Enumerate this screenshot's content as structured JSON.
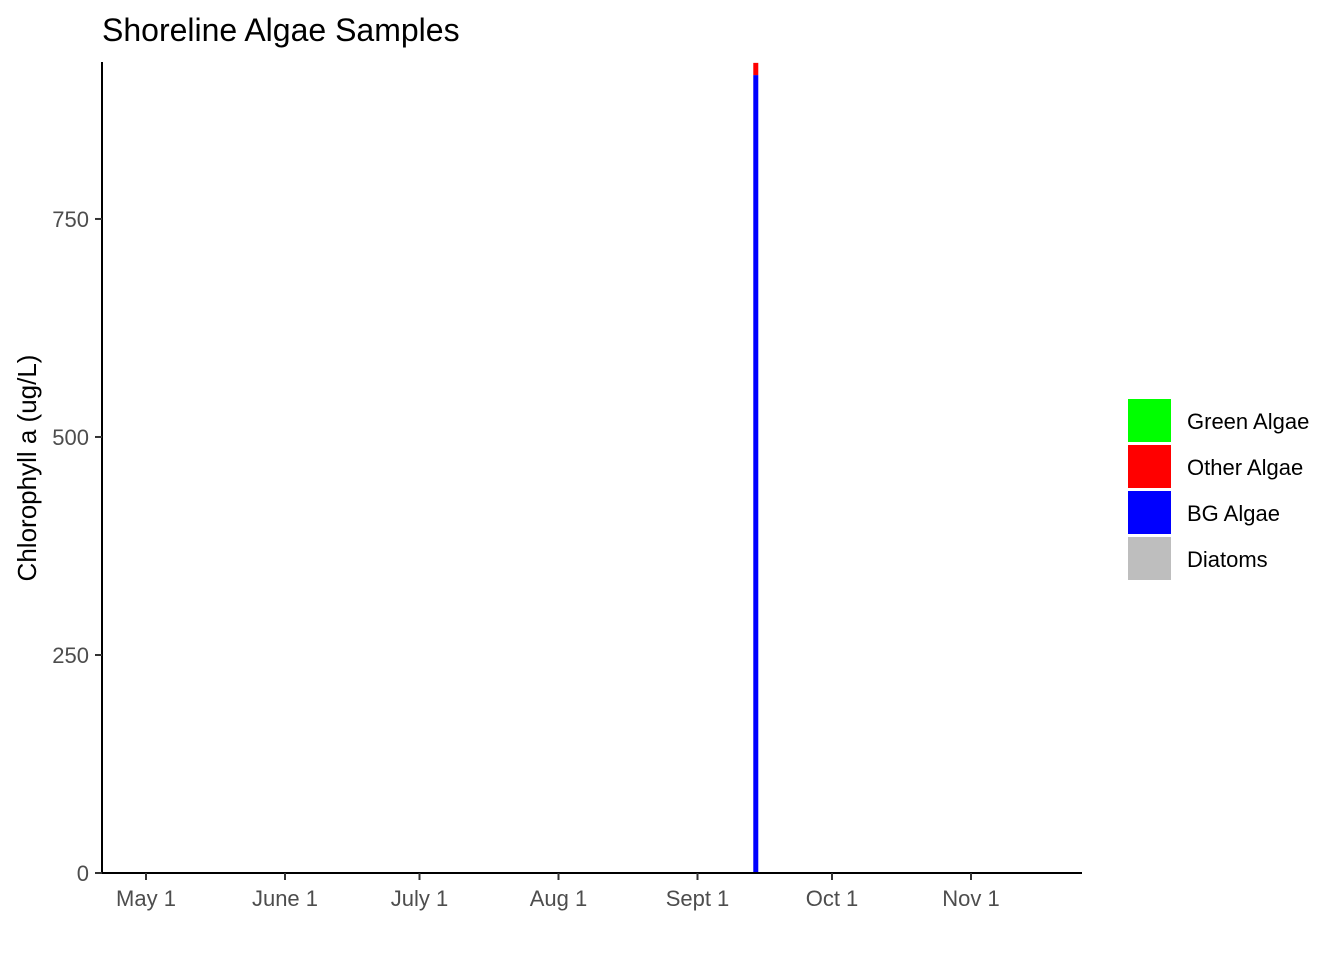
{
  "chart_data": {
    "type": "bar",
    "title": "Shoreline Algae Samples",
    "xlabel": "",
    "ylabel": "Chlorophyll a (ug/L)",
    "x_ticks": [
      "May 1",
      "June 1",
      "July 1",
      "Aug 1",
      "Sept 1",
      "Oct 1",
      "Nov 1"
    ],
    "y_ticks": [
      "0",
      "250",
      "500",
      "750"
    ],
    "ylim": [
      0,
      930
    ],
    "grid": false,
    "legend_position": "right",
    "series": [
      {
        "name": "Green Algae",
        "color": "#00ff00",
        "values": [
          0
        ]
      },
      {
        "name": "Other Algae",
        "color": "#ff0000",
        "values": [
          14
        ]
      },
      {
        "name": "BG Algae",
        "color": "#0000ff",
        "values": [
          915
        ]
      },
      {
        "name": "Diatoms",
        "color": "#bebebe",
        "values": [
          0
        ]
      }
    ],
    "stack_order": [
      "BG Algae",
      "Other Algae",
      "Green Algae",
      "Diatoms"
    ],
    "x": [
      "Sept 14"
    ]
  }
}
